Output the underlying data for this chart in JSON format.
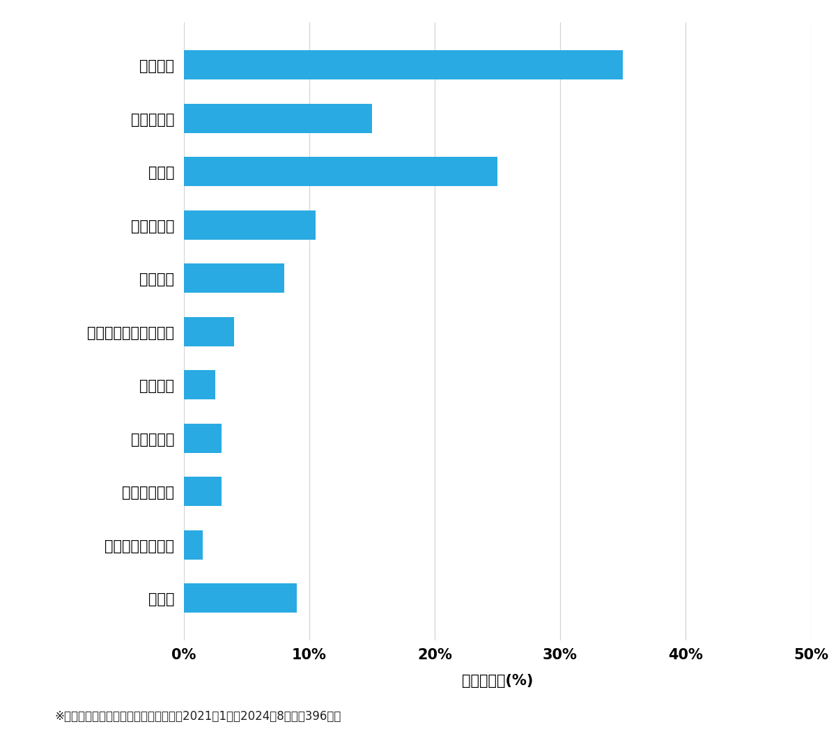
{
  "categories": [
    "その他",
    "スーツケース開鍵",
    "その他鍵作成",
    "玄関鍵作成",
    "金庫開鍵",
    "イモビ付国産車鍵作成",
    "車鍵作成",
    "その他開鍵",
    "車開鍵",
    "玄関鍵交換",
    "玄関開鍵"
  ],
  "values": [
    9.0,
    1.5,
    3.0,
    3.0,
    2.5,
    4.0,
    8.0,
    10.5,
    25.0,
    15.0,
    35.0
  ],
  "bar_color": "#29aae2",
  "xlabel": "件数の割合(%)",
  "xlim": [
    0,
    50
  ],
  "xticks": [
    0,
    10,
    20,
    30,
    40,
    50
  ],
  "xtick_labels": [
    "0%",
    "10%",
    "20%",
    "30%",
    "40%",
    "50%"
  ],
  "footnote": "※弊社受付の案件を対象に集計（期間：2021年1月～2024年8月、訜396件）",
  "background_color": "#ffffff",
  "bar_height": 0.55,
  "tick_fontsize": 15,
  "label_fontsize": 15,
  "footnote_fontsize": 12,
  "grid_color": "#d4d4d4"
}
